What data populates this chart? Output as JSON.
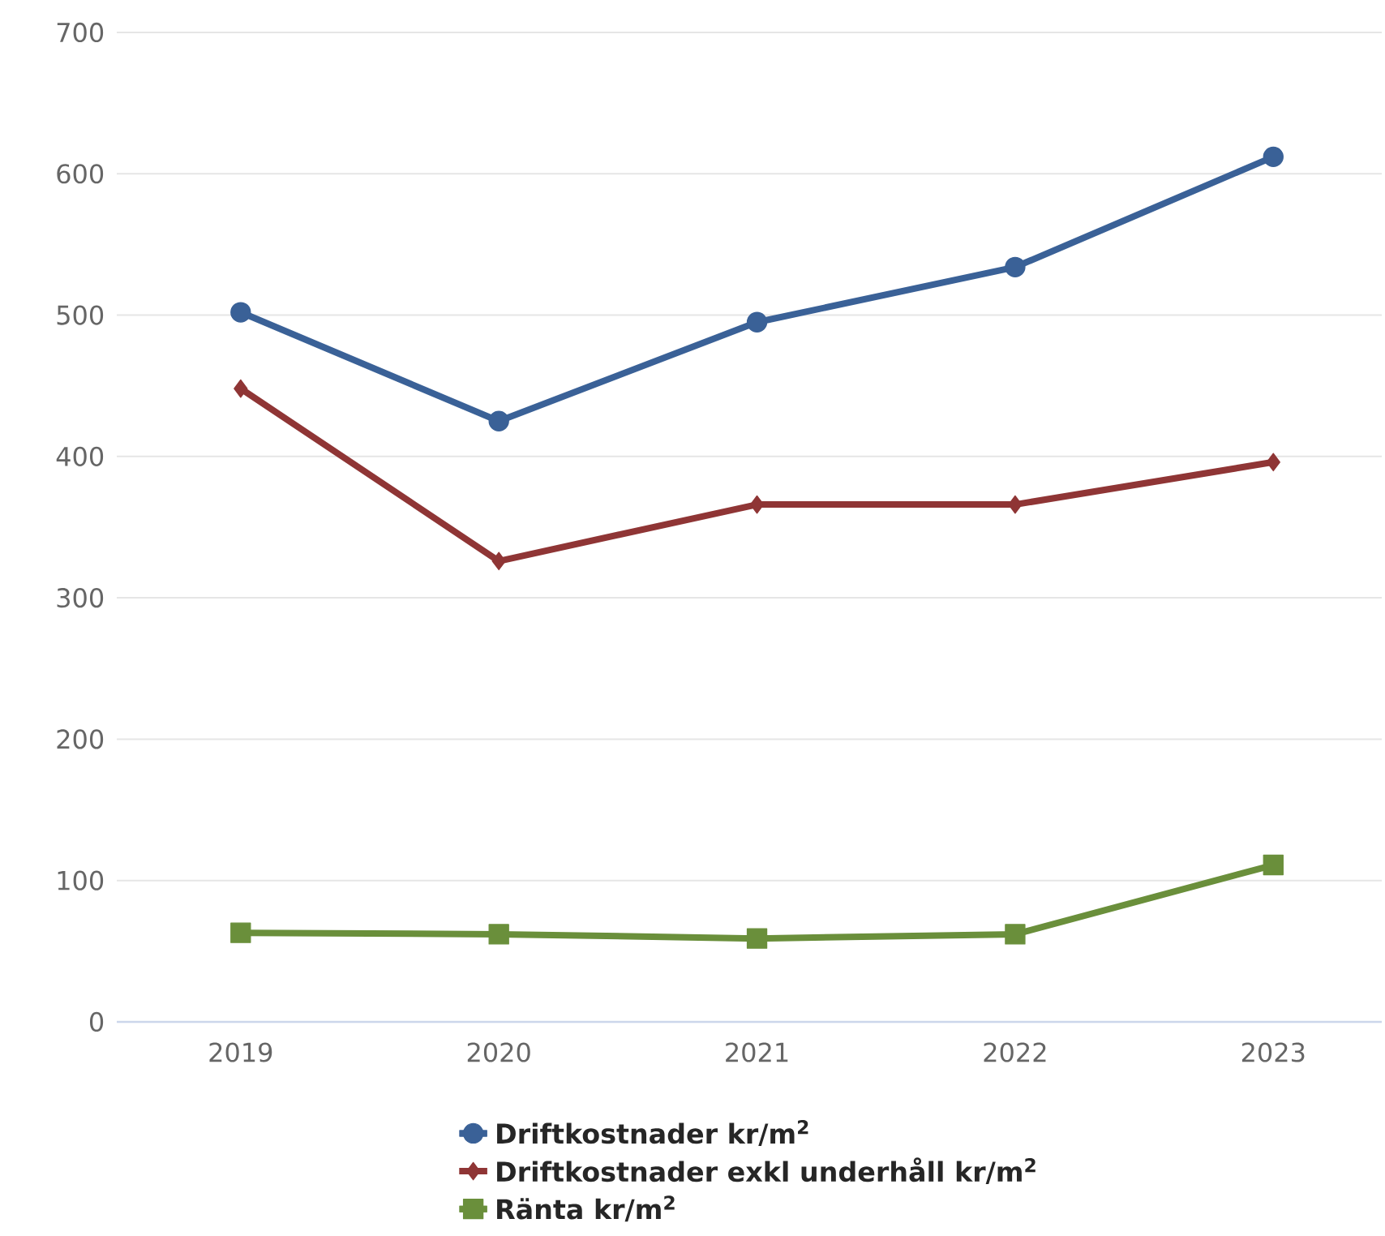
{
  "chart_data": {
    "type": "line",
    "categories": [
      "2019",
      "2020",
      "2021",
      "2022",
      "2023"
    ],
    "series": [
      {
        "name": "Driftkostnader kr/m$^{2}$",
        "color": "#3a6197",
        "marker": "circle",
        "values": [
          502,
          425,
          495,
          534,
          612
        ]
      },
      {
        "name": "Driftkostnader exkl underhåll kr/m$^{2}$",
        "color": "#8f3535",
        "marker": "diamond",
        "values": [
          448,
          326,
          366,
          366,
          396
        ]
      },
      {
        "name": "Ränta kr/m$^{2}$",
        "color": "#6a8f3b",
        "marker": "square",
        "values": [
          63,
          62,
          59,
          62,
          111
        ]
      }
    ],
    "ylim": [
      0,
      700
    ],
    "yticks": [
      0,
      100,
      200,
      300,
      400,
      500,
      600,
      700
    ],
    "grid": "y",
    "legend": "bottom",
    "line_style": "solid"
  }
}
